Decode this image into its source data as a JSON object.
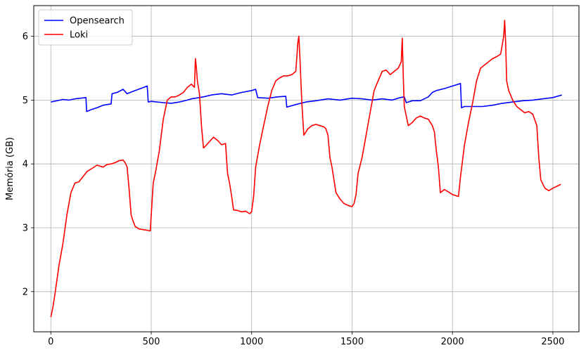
{
  "chart_data": {
    "type": "line",
    "xlabel": "",
    "ylabel": "Memória (GB)",
    "xlim": [
      -85,
      2630
    ],
    "ylim": [
      1.37,
      6.48
    ],
    "xticks": [
      0,
      500,
      1000,
      1500,
      2000,
      2500
    ],
    "yticks": [
      2,
      3,
      4,
      5,
      6
    ],
    "grid": true,
    "legend_position": "top-left",
    "series": [
      {
        "name": "Opensearch",
        "color": "#0000ff",
        "x": [
          0,
          30,
          60,
          90,
          120,
          175,
          178,
          200,
          230,
          260,
          300,
          305,
          330,
          360,
          380,
          420,
          480,
          485,
          500,
          560,
          600,
          640,
          680,
          700,
          720,
          760,
          800,
          850,
          900,
          950,
          1000,
          1020,
          1030,
          1080,
          1130,
          1170,
          1175,
          1220,
          1270,
          1320,
          1380,
          1440,
          1500,
          1550,
          1600,
          1650,
          1700,
          1740,
          1760,
          1770,
          1800,
          1840,
          1880,
          1900,
          1920,
          1960,
          2000,
          2040,
          2045,
          2060,
          2100,
          2150,
          2200,
          2250,
          2300,
          2350,
          2400,
          2450,
          2500,
          2545
        ],
        "y": [
          4.97,
          4.99,
          5.01,
          5.0,
          5.02,
          5.04,
          4.82,
          4.85,
          4.88,
          4.92,
          4.94,
          5.1,
          5.12,
          5.17,
          5.1,
          5.15,
          5.22,
          4.97,
          4.98,
          4.96,
          4.95,
          4.97,
          5.0,
          5.02,
          5.03,
          5.05,
          5.08,
          5.1,
          5.08,
          5.12,
          5.15,
          5.17,
          5.04,
          5.03,
          5.05,
          5.06,
          4.89,
          4.93,
          4.97,
          4.99,
          5.02,
          5.0,
          5.03,
          5.02,
          5.0,
          5.02,
          5.0,
          5.04,
          5.05,
          4.96,
          4.99,
          4.99,
          5.05,
          5.12,
          5.15,
          5.18,
          5.22,
          5.26,
          4.88,
          4.9,
          4.9,
          4.9,
          4.92,
          4.95,
          4.97,
          4.99,
          5.0,
          5.02,
          5.04,
          5.08
        ]
      },
      {
        "name": "Loki",
        "color": "#ff0000",
        "x": [
          0,
          10,
          20,
          40,
          60,
          80,
          100,
          120,
          140,
          160,
          180,
          200,
          230,
          260,
          280,
          300,
          320,
          340,
          360,
          370,
          380,
          390,
          400,
          410,
          420,
          440,
          460,
          480,
          495,
          500,
          510,
          520,
          540,
          560,
          580,
          600,
          620,
          640,
          660,
          680,
          700,
          715,
          720,
          725,
          730,
          740,
          750,
          760,
          770,
          790,
          810,
          830,
          850,
          870,
          880,
          890,
          900,
          910,
          930,
          950,
          970,
          990,
          1000,
          1010,
          1020,
          1040,
          1060,
          1080,
          1100,
          1120,
          1140,
          1160,
          1180,
          1200,
          1220,
          1230,
          1235,
          1240,
          1250,
          1260,
          1270,
          1280,
          1300,
          1320,
          1340,
          1360,
          1370,
          1380,
          1390,
          1400,
          1420,
          1440,
          1460,
          1480,
          1500,
          1510,
          1520,
          1530,
          1550,
          1570,
          1590,
          1610,
          1630,
          1650,
          1670,
          1690,
          1710,
          1730,
          1745,
          1750,
          1755,
          1760,
          1770,
          1780,
          1800,
          1820,
          1840,
          1860,
          1880,
          1900,
          1910,
          1920,
          1930,
          1940,
          1960,
          1980,
          2000,
          2020,
          2030,
          2040,
          2060,
          2080,
          2100,
          2120,
          2140,
          2160,
          2180,
          2200,
          2220,
          2240,
          2255,
          2260,
          2265,
          2270,
          2280,
          2300,
          2320,
          2340,
          2360,
          2380,
          2400,
          2420,
          2430,
          2440,
          2460,
          2480,
          2500,
          2520,
          2540
        ],
        "y": [
          1.6,
          1.75,
          1.95,
          2.4,
          2.75,
          3.2,
          3.55,
          3.7,
          3.72,
          3.8,
          3.88,
          3.92,
          3.98,
          3.95,
          3.99,
          4.0,
          4.02,
          4.05,
          4.06,
          4.02,
          3.95,
          3.6,
          3.2,
          3.1,
          3.02,
          2.98,
          2.97,
          2.96,
          2.95,
          3.2,
          3.7,
          3.85,
          4.2,
          4.7,
          5.0,
          5.05,
          5.05,
          5.08,
          5.12,
          5.2,
          5.25,
          5.2,
          5.65,
          5.5,
          5.3,
          5.1,
          4.6,
          4.25,
          4.28,
          4.35,
          4.42,
          4.37,
          4.3,
          4.32,
          3.85,
          3.7,
          3.5,
          3.28,
          3.27,
          3.25,
          3.26,
          3.22,
          3.25,
          3.5,
          3.95,
          4.3,
          4.6,
          4.9,
          5.15,
          5.3,
          5.35,
          5.38,
          5.38,
          5.4,
          5.45,
          5.9,
          6.0,
          5.7,
          4.95,
          4.45,
          4.5,
          4.55,
          4.6,
          4.62,
          4.6,
          4.58,
          4.55,
          4.45,
          4.1,
          3.95,
          3.55,
          3.45,
          3.38,
          3.35,
          3.33,
          3.38,
          3.52,
          3.85,
          4.1,
          4.45,
          4.8,
          5.15,
          5.3,
          5.45,
          5.47,
          5.4,
          5.45,
          5.5,
          5.6,
          5.97,
          5.4,
          4.9,
          4.75,
          4.6,
          4.65,
          4.72,
          4.75,
          4.72,
          4.7,
          4.6,
          4.5,
          4.2,
          3.95,
          3.55,
          3.6,
          3.56,
          3.52,
          3.5,
          3.49,
          3.8,
          4.3,
          4.65,
          4.95,
          5.3,
          5.5,
          5.55,
          5.6,
          5.65,
          5.68,
          5.72,
          6.0,
          6.25,
          5.9,
          5.3,
          5.15,
          5.0,
          4.9,
          4.85,
          4.8,
          4.82,
          4.78,
          4.6,
          4.1,
          3.75,
          3.62,
          3.58,
          3.62,
          3.65,
          3.68
        ]
      }
    ]
  }
}
